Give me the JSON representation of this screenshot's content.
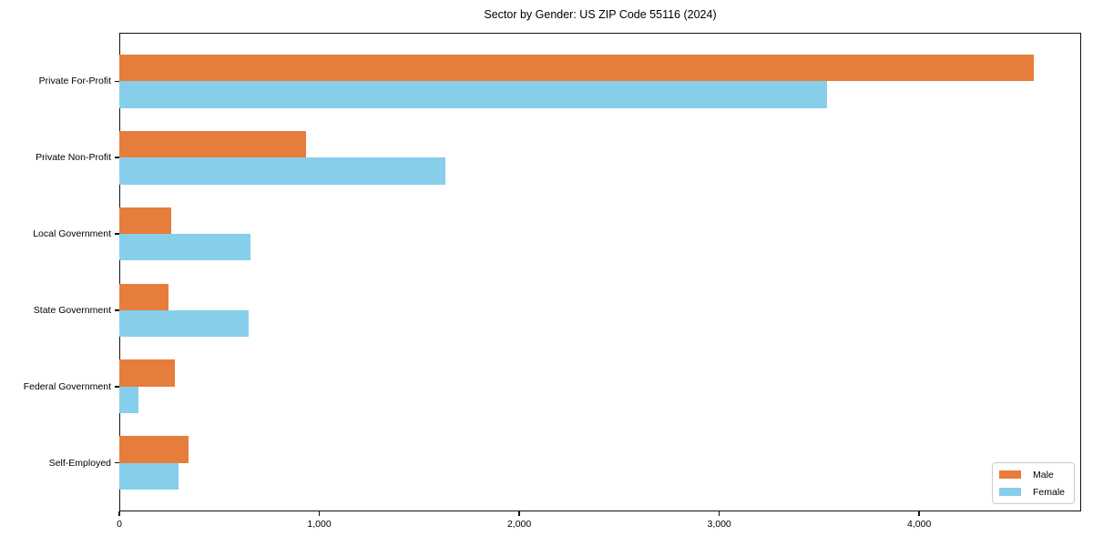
{
  "chart_data": {
    "type": "bar",
    "orientation": "horizontal",
    "title": "Sector by Gender: US ZIP Code 55116 (2024)",
    "categories": [
      "Private For-Profit",
      "Private Non-Profit",
      "Local Government",
      "State Government",
      "Federal Government",
      "Self-Employed"
    ],
    "series": [
      {
        "name": "Male",
        "color": "#e77d3c",
        "values": [
          4575,
          935,
          260,
          245,
          278,
          348
        ]
      },
      {
        "name": "Female",
        "color": "#87ceeb",
        "values": [
          3540,
          1630,
          655,
          645,
          95,
          296
        ]
      }
    ],
    "xlabel": "",
    "ylabel": "",
    "xlim": [
      0,
      4810
    ],
    "xticks": [
      {
        "value": 0,
        "label": "0"
      },
      {
        "value": 1000,
        "label": "1,000"
      },
      {
        "value": 2000,
        "label": "2,000"
      },
      {
        "value": 3000,
        "label": "3,000"
      },
      {
        "value": 4000,
        "label": "4,000"
      }
    ],
    "grid": false,
    "legend_position": "lower right",
    "frame_color": "#111111",
    "background_color": "#ffffff"
  }
}
